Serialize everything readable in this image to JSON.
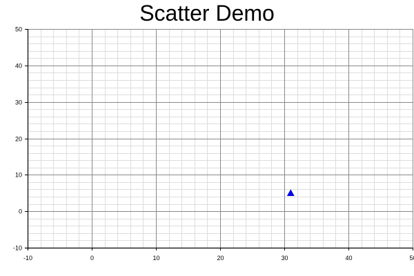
{
  "chart_data": {
    "type": "scatter",
    "title": "Scatter Demo",
    "xlabel": "",
    "ylabel": "",
    "xlim": [
      -10,
      50
    ],
    "ylim": [
      -10,
      50
    ],
    "x_ticks": [
      -10,
      0,
      10,
      20,
      30,
      40,
      50
    ],
    "y_ticks": [
      -10,
      0,
      10,
      20,
      30,
      40,
      50
    ],
    "grid": true,
    "minor_grid": true,
    "series": [
      {
        "marker": "triangle",
        "color": "#0000ff",
        "points": [
          {
            "x": 31,
            "y": 5
          }
        ]
      }
    ]
  }
}
